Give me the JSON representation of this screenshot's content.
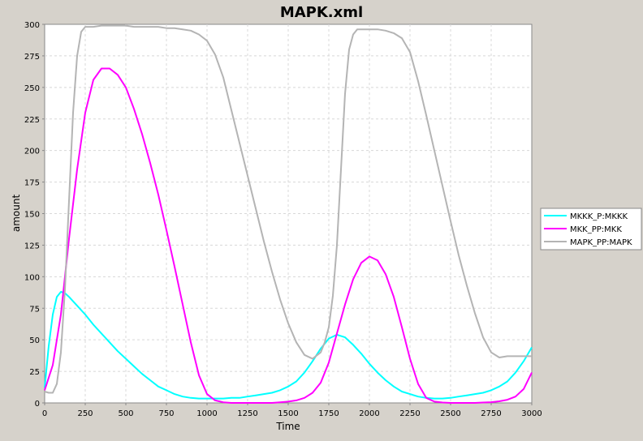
{
  "chart_data": {
    "type": "line",
    "title": "MAPK.xml",
    "xlabel": "Time",
    "ylabel": "amount",
    "xlim": [
      0,
      3000
    ],
    "ylim": [
      0,
      300
    ],
    "x_ticks": [
      0,
      250,
      500,
      750,
      1000,
      1250,
      1500,
      1750,
      2000,
      2250,
      2500,
      2750,
      3000
    ],
    "y_ticks": [
      0,
      25,
      50,
      75,
      100,
      125,
      150,
      175,
      200,
      225,
      250,
      275,
      300
    ],
    "grid": true,
    "legend_position": "right",
    "series": [
      {
        "name": "MKKK_P:MKKK",
        "color": "#00ffff",
        "x": [
          0,
          25,
          50,
          75,
          100,
          125,
          150,
          200,
          250,
          300,
          350,
          400,
          450,
          500,
          550,
          600,
          650,
          700,
          750,
          800,
          850,
          900,
          950,
          1000,
          1050,
          1100,
          1150,
          1200,
          1250,
          1300,
          1350,
          1400,
          1450,
          1500,
          1550,
          1600,
          1650,
          1700,
          1750,
          1800,
          1850,
          1900,
          1950,
          2000,
          2050,
          2100,
          2150,
          2200,
          2250,
          2300,
          2350,
          2400,
          2450,
          2500,
          2550,
          2600,
          2650,
          2700,
          2750,
          2800,
          2850,
          2900,
          2950,
          3000
        ],
        "y": [
          12,
          45,
          70,
          84,
          88,
          87,
          84,
          77,
          70,
          62,
          55,
          48,
          41,
          35,
          29,
          23,
          18,
          13,
          10,
          7,
          5,
          4,
          3.5,
          3.5,
          3.5,
          3.5,
          4,
          4,
          5,
          6,
          7,
          8,
          10,
          13,
          17,
          24,
          33,
          43,
          51,
          54,
          52,
          46,
          39,
          31,
          24,
          18,
          13,
          9,
          7,
          5,
          4,
          3.5,
          3.5,
          4,
          5,
          6,
          7,
          8,
          10,
          13,
          17,
          24,
          33,
          44
        ]
      },
      {
        "name": "MKK_PP:MKK",
        "color": "#ff00ff",
        "x": [
          0,
          50,
          100,
          150,
          200,
          250,
          300,
          350,
          400,
          450,
          500,
          550,
          600,
          650,
          700,
          750,
          800,
          850,
          900,
          950,
          1000,
          1050,
          1100,
          1150,
          1200,
          1250,
          1300,
          1350,
          1400,
          1450,
          1500,
          1550,
          1600,
          1650,
          1700,
          1750,
          1800,
          1850,
          1900,
          1950,
          2000,
          2050,
          2100,
          2150,
          2200,
          2250,
          2300,
          2350,
          2400,
          2450,
          2500,
          2550,
          2600,
          2650,
          2700,
          2750,
          2800,
          2850,
          2900,
          2950,
          3000
        ],
        "y": [
          10,
          30,
          70,
          130,
          185,
          230,
          256,
          265,
          265,
          260,
          250,
          233,
          213,
          190,
          165,
          137,
          108,
          78,
          48,
          22,
          7,
          2,
          0.5,
          0,
          0,
          0,
          0,
          0,
          0,
          0.5,
          1,
          2,
          4,
          8,
          16,
          32,
          55,
          78,
          98,
          111,
          116,
          113,
          102,
          84,
          60,
          35,
          15,
          4,
          1,
          0.3,
          0,
          0,
          0,
          0,
          0.3,
          0.6,
          1.3,
          2.5,
          5,
          11,
          24
        ]
      },
      {
        "name": "MAPK_PP:MAPK",
        "color": "#b4b4b4",
        "x": [
          0,
          25,
          50,
          75,
          100,
          125,
          150,
          175,
          200,
          225,
          250,
          275,
          300,
          350,
          400,
          450,
          500,
          550,
          600,
          650,
          700,
          750,
          800,
          850,
          900,
          950,
          1000,
          1050,
          1100,
          1150,
          1200,
          1250,
          1300,
          1350,
          1400,
          1450,
          1500,
          1550,
          1600,
          1650,
          1700,
          1725,
          1750,
          1775,
          1800,
          1825,
          1850,
          1875,
          1900,
          1925,
          1950,
          1975,
          2000,
          2050,
          2100,
          2150,
          2200,
          2250,
          2300,
          2350,
          2400,
          2450,
          2500,
          2550,
          2600,
          2650,
          2700,
          2750,
          2800,
          2850,
          2900,
          2950,
          3000
        ],
        "y": [
          9,
          8,
          8,
          15,
          40,
          90,
          160,
          230,
          275,
          294,
          298,
          298,
          298,
          299,
          299,
          299,
          299,
          298,
          298,
          298,
          298,
          297,
          297,
          296,
          295,
          292,
          287,
          276,
          258,
          232,
          206,
          180,
          154,
          128,
          104,
          82,
          63,
          48,
          38,
          35,
          40,
          48,
          60,
          85,
          125,
          185,
          245,
          280,
          292,
          296,
          296,
          296,
          296,
          296,
          295,
          293,
          289,
          278,
          255,
          228,
          200,
          172,
          144,
          117,
          93,
          71,
          52,
          40,
          36,
          37,
          37,
          37,
          37
        ]
      }
    ]
  }
}
